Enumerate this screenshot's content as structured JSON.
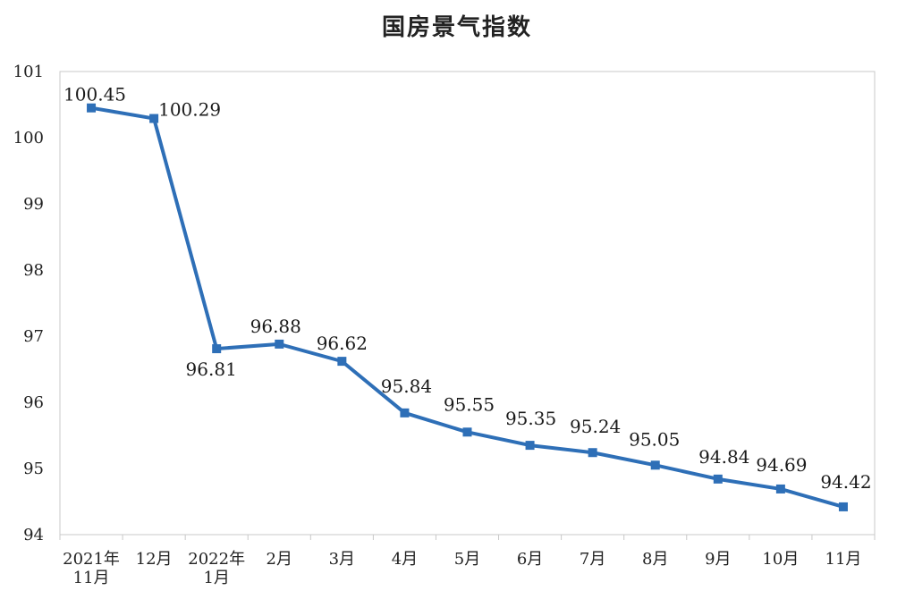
{
  "chart_data": {
    "type": "line",
    "title": "国房景气指数",
    "xlabel": "",
    "ylabel": "",
    "ylim": [
      94,
      101
    ],
    "yticks": [
      94,
      95,
      96,
      97,
      98,
      99,
      100,
      101
    ],
    "grid": false,
    "legend": "none",
    "categories": [
      [
        "2021年",
        "11月"
      ],
      [
        "12月"
      ],
      [
        "2022年",
        "1月"
      ],
      [
        "2月"
      ],
      [
        "3月"
      ],
      [
        "4月"
      ],
      [
        "5月"
      ],
      [
        "6月"
      ],
      [
        "7月"
      ],
      [
        "8月"
      ],
      [
        "9月"
      ],
      [
        "10月"
      ],
      [
        "11月"
      ]
    ],
    "series": [
      {
        "color": "#2e6fb7",
        "values": [
          100.45,
          100.29,
          96.81,
          96.88,
          96.62,
          95.84,
          95.55,
          95.35,
          95.24,
          95.05,
          94.84,
          94.69,
          94.42
        ],
        "data_labels": [
          "100.45",
          "100.29",
          "96.81",
          "96.88",
          "96.62",
          "95.84",
          "95.55",
          "95.35",
          "95.24",
          "95.05",
          "94.84",
          "94.69",
          "94.42"
        ]
      }
    ]
  }
}
